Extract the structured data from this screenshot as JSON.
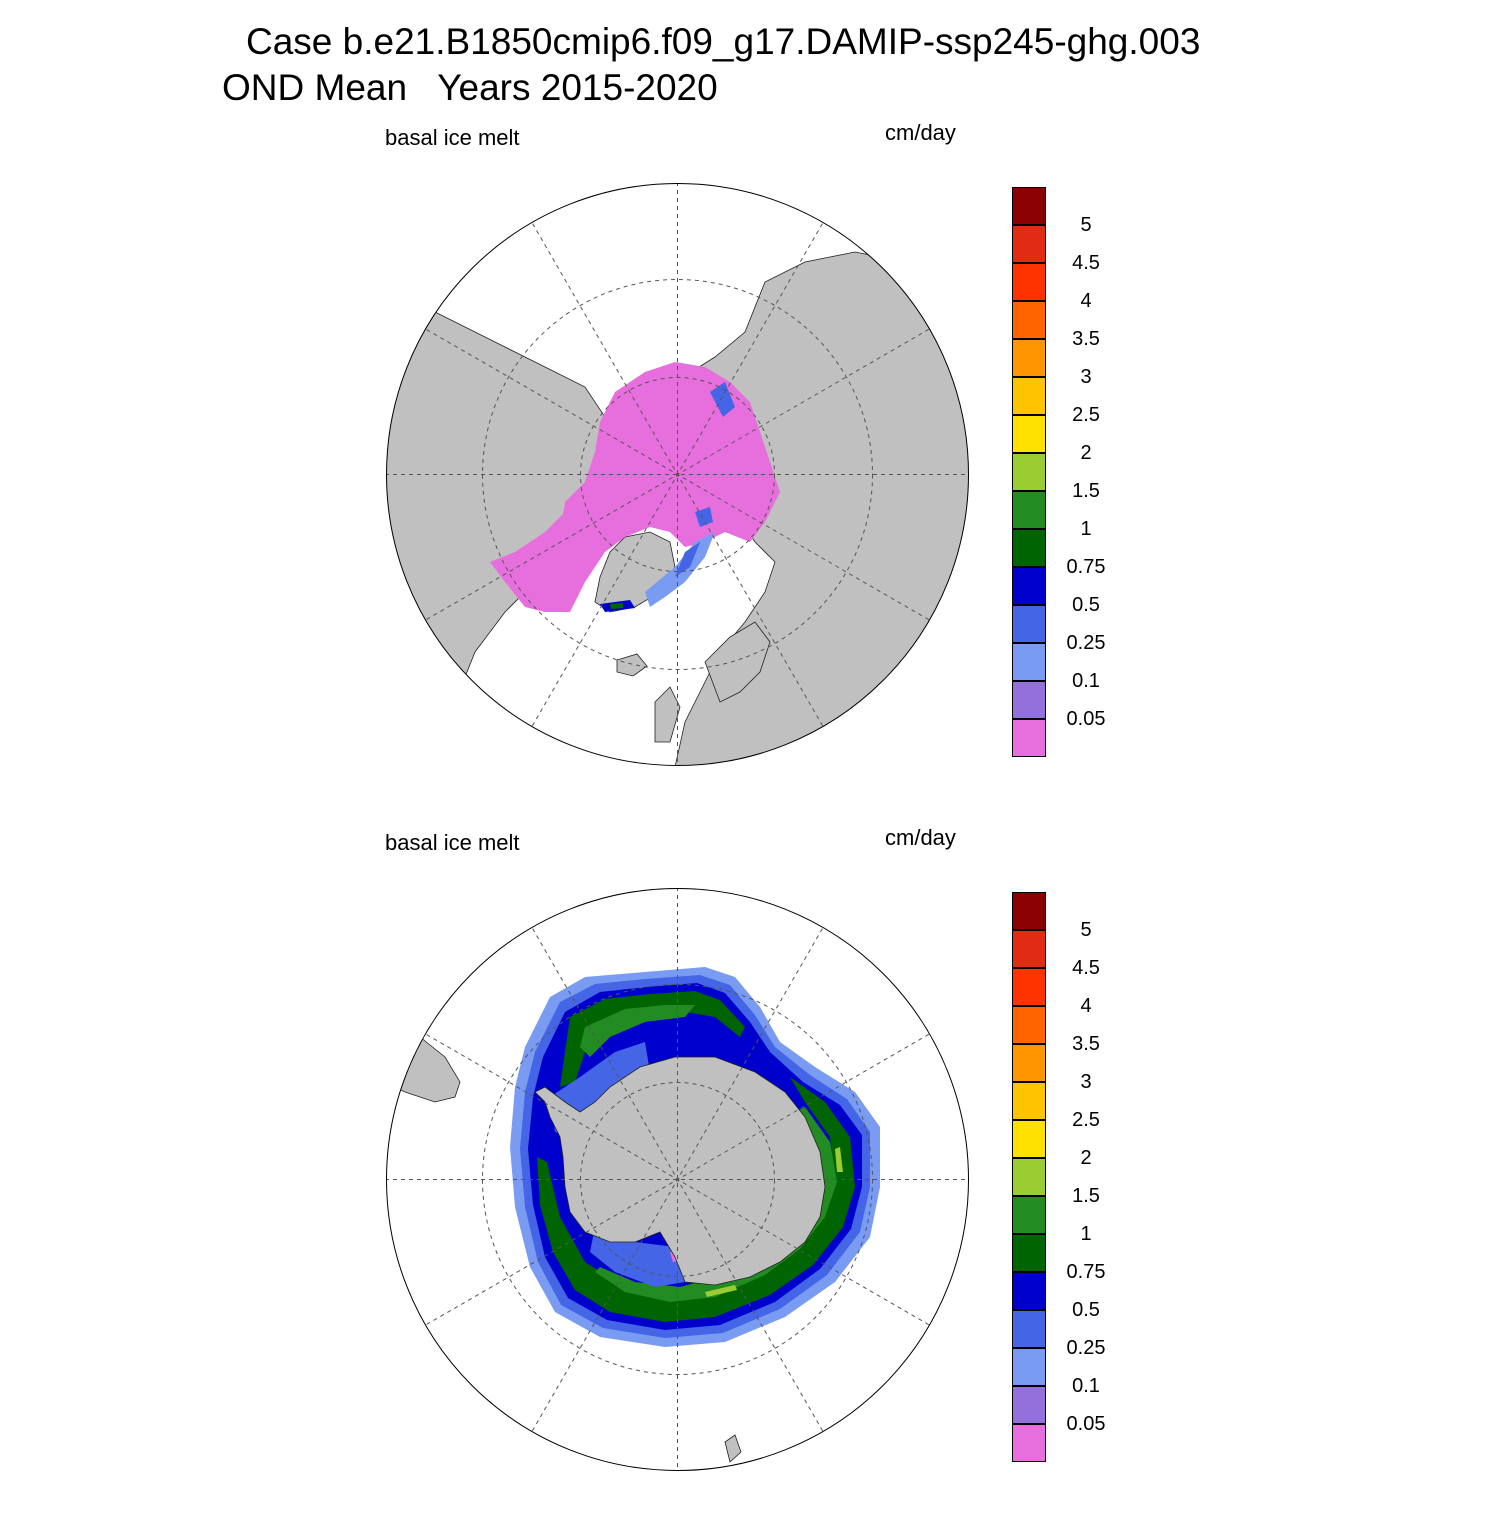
{
  "title": {
    "line1": "Case b.e21.B1850cmip6.f09_g17.DAMIP-ssp245-ghg.003",
    "line2": "OND Mean   Years 2015-2020"
  },
  "panels": [
    {
      "id": "north",
      "left_label": "basal ice melt",
      "right_label": "cm/day"
    },
    {
      "id": "south",
      "left_label": "basal ice melt",
      "right_label": "cm/day"
    }
  ],
  "colorbar": {
    "colors": [
      "#e76edd",
      "#9370db",
      "#7a9bf2",
      "#4466e6",
      "#0000cd",
      "#006400",
      "#228b22",
      "#9acd32",
      "#ffe100",
      "#ffc300",
      "#ff9600",
      "#ff6400",
      "#ff3300",
      "#e02c12",
      "#8b0000"
    ],
    "labels": [
      "0.05",
      "0.1",
      "0.25",
      "0.5",
      "0.75",
      "1",
      "1.5",
      "2",
      "2.5",
      "3",
      "3.5",
      "4",
      "4.5",
      "5"
    ]
  },
  "map_colors": {
    "land": "#c0c0c0",
    "ocean": "#ffffff",
    "grid": "#555555"
  }
}
